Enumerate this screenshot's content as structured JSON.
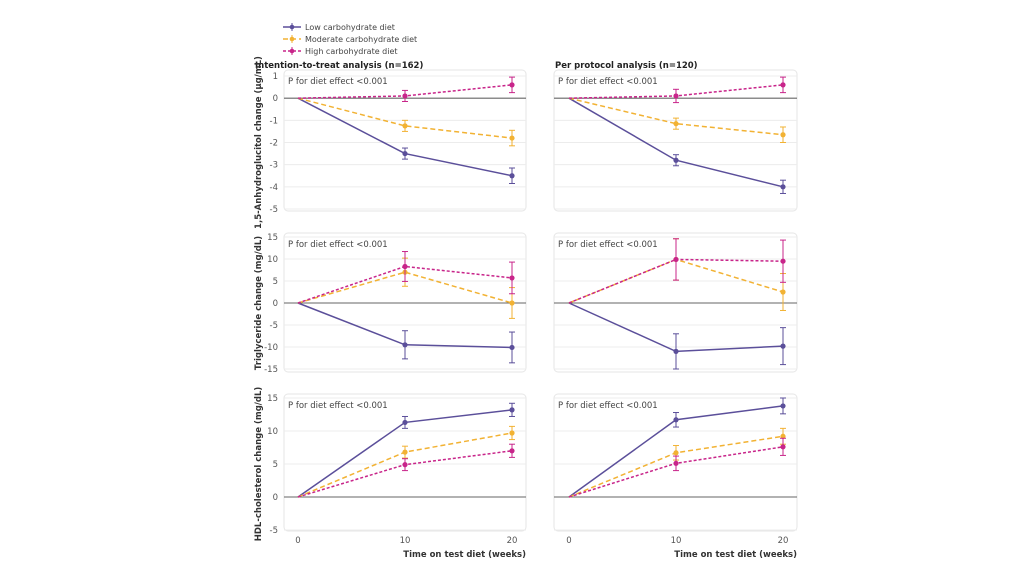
{
  "chart_data": {
    "type": "line",
    "legend": {
      "placement": "top-left",
      "entries": [
        {
          "name": "Low carbohydrate diet",
          "color": "#5b4f9a",
          "dash": "solid"
        },
        {
          "name": "Moderate carbohydrate diet",
          "color": "#f2b233",
          "dash": "long-dash"
        },
        {
          "name": "High carbohydrate diet",
          "color": "#c8258a",
          "dash": "short-dash"
        }
      ]
    },
    "x": [
      0,
      10,
      20
    ],
    "xticks": [
      "0",
      "10",
      "20"
    ],
    "xlabel": "Time on test diet (weeks)",
    "column_titles": [
      "Intention-to-treat analysis (n=162)",
      "Per protocol analysis (n=120)"
    ],
    "panels": [
      {
        "row": 0,
        "col": 0,
        "ylabel": "1,5-Anhydroglucitol change (μg/mL)",
        "ylim": [
          -5,
          1
        ],
        "yticks": [
          "1",
          "0",
          "-1",
          "-2",
          "-3",
          "-4",
          "-5"
        ],
        "annotation": "P for diet effect <0.001",
        "series": [
          {
            "name": "Low carbohydrate diet",
            "values": [
              0,
              -2.5,
              -3.5
            ],
            "err": [
              0,
              0.25,
              0.35
            ]
          },
          {
            "name": "Moderate carbohydrate diet",
            "values": [
              0,
              -1.25,
              -1.8
            ],
            "err": [
              0,
              0.25,
              0.35
            ]
          },
          {
            "name": "High carbohydrate diet",
            "values": [
              0,
              0.1,
              0.6
            ],
            "err": [
              0,
              0.25,
              0.35
            ]
          }
        ]
      },
      {
        "row": 0,
        "col": 1,
        "ylabel": "",
        "ylim": [
          -5,
          1
        ],
        "yticks": [],
        "annotation": "P for diet effect <0.001",
        "series": [
          {
            "name": "Low carbohydrate diet",
            "values": [
              0,
              -2.8,
              -4.0
            ],
            "err": [
              0,
              0.25,
              0.3
            ]
          },
          {
            "name": "Moderate carbohydrate diet",
            "values": [
              0,
              -1.15,
              -1.65
            ],
            "err": [
              0,
              0.25,
              0.35
            ]
          },
          {
            "name": "High carbohydrate diet",
            "values": [
              0,
              0.1,
              0.6
            ],
            "err": [
              0,
              0.3,
              0.35
            ]
          }
        ]
      },
      {
        "row": 1,
        "col": 0,
        "ylabel": "Triglyceride change (mg/dL)",
        "ylim": [
          -15,
          15
        ],
        "yticks": [
          "15",
          "10",
          "5",
          "0",
          "-5",
          "-10",
          "-15"
        ],
        "annotation": "P for diet effect <0.001",
        "series": [
          {
            "name": "Low carbohydrate diet",
            "values": [
              0,
              -9.5,
              -10.1
            ],
            "err": [
              0,
              3.2,
              3.5
            ]
          },
          {
            "name": "Moderate carbohydrate diet",
            "values": [
              0,
              7.0,
              0
            ],
            "err": [
              0,
              3.2,
              3.5
            ]
          },
          {
            "name": "High carbohydrate diet",
            "values": [
              0,
              8.3,
              5.7
            ],
            "err": [
              0,
              3.4,
              3.6
            ]
          }
        ]
      },
      {
        "row": 1,
        "col": 1,
        "ylabel": "",
        "ylim": [
          -15,
          15
        ],
        "yticks": [],
        "annotation": "P for diet effect <0.001",
        "series": [
          {
            "name": "Low carbohydrate diet",
            "values": [
              0,
              -11.0,
              -9.8
            ],
            "err": [
              0,
              4.0,
              4.2
            ]
          },
          {
            "name": "Moderate carbohydrate diet",
            "values": [
              0,
              9.9,
              2.5
            ],
            "err": [
              0,
              4.7,
              4.2
            ]
          },
          {
            "name": "High carbohydrate diet",
            "values": [
              0,
              9.9,
              9.5
            ],
            "err": [
              0,
              4.7,
              4.8
            ]
          }
        ]
      },
      {
        "row": 2,
        "col": 0,
        "ylabel": "HDL-cholesterol change (mg/dL)",
        "ylim": [
          -5,
          15
        ],
        "yticks": [
          "15",
          "10",
          "5",
          "0",
          "-5"
        ],
        "annotation": "P for diet effect <0.001",
        "series": [
          {
            "name": "Low carbohydrate diet",
            "values": [
              0,
              11.3,
              13.2
            ],
            "err": [
              0,
              0.9,
              1.0
            ]
          },
          {
            "name": "Moderate carbohydrate diet",
            "values": [
              0,
              6.8,
              9.7
            ],
            "err": [
              0,
              0.9,
              1.0
            ]
          },
          {
            "name": "High carbohydrate diet",
            "values": [
              0,
              4.9,
              7.0
            ],
            "err": [
              0,
              0.9,
              1.0
            ]
          }
        ]
      },
      {
        "row": 2,
        "col": 1,
        "ylabel": "",
        "ylim": [
          -5,
          15
        ],
        "yticks": [],
        "annotation": "P for diet effect <0.001",
        "series": [
          {
            "name": "Low carbohydrate diet",
            "values": [
              0,
              11.7,
              13.8
            ],
            "err": [
              0,
              1.1,
              1.2
            ]
          },
          {
            "name": "Moderate carbohydrate diet",
            "values": [
              0,
              6.7,
              9.2
            ],
            "err": [
              0,
              1.1,
              1.2
            ]
          },
          {
            "name": "High carbohydrate diet",
            "values": [
              0,
              5.1,
              7.6
            ],
            "err": [
              0,
              1.1,
              1.3
            ]
          }
        ]
      }
    ]
  }
}
